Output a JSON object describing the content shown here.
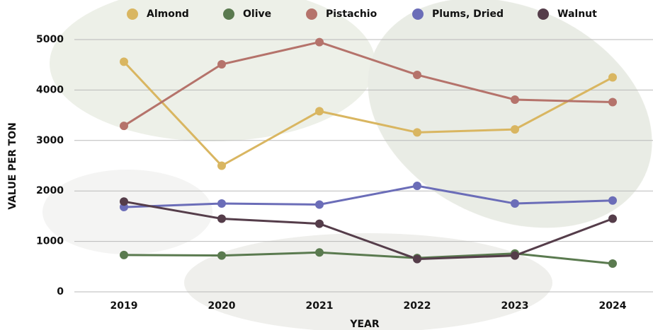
{
  "chart_data": {
    "type": "line",
    "x_label": "YEAR",
    "y_label": "VALUE PER TON",
    "categories": [
      "2019",
      "2020",
      "2021",
      "2022",
      "2023",
      "2024"
    ],
    "series": [
      {
        "name": "Almond",
        "color": "#d9b661",
        "values": [
          4560,
          2500,
          3580,
          3160,
          3220,
          4250
        ]
      },
      {
        "name": "Olive",
        "color": "#5a7a4f",
        "values": [
          730,
          720,
          780,
          670,
          760,
          560
        ]
      },
      {
        "name": "Pistachio",
        "color": "#b5736b",
        "values": [
          3290,
          4510,
          4950,
          4300,
          3810,
          3760
        ]
      },
      {
        "name": "Plums, Dried",
        "color": "#6b6db8",
        "values": [
          1680,
          1750,
          1730,
          2100,
          1750,
          1810
        ]
      },
      {
        "name": "Walnut",
        "color": "#553d4a",
        "values": [
          1790,
          1450,
          1350,
          650,
          720,
          1450
        ]
      }
    ],
    "ylim": [
      0,
      5000
    ],
    "yticks": [
      0,
      1000,
      2000,
      3000,
      4000,
      5000
    ],
    "grid": true
  }
}
